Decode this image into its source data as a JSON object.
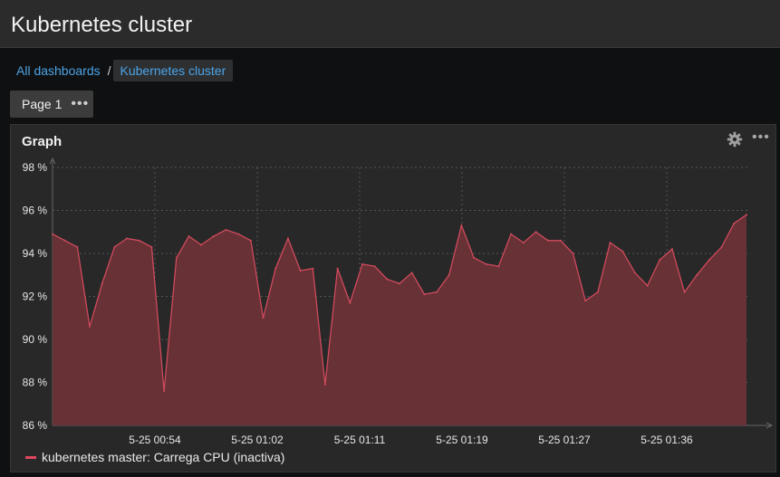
{
  "page": {
    "title": "Kubernetes cluster"
  },
  "breadcrumb": {
    "root": "All dashboards",
    "separator": "/",
    "current": "Kubernetes cluster"
  },
  "page_button": {
    "label": "Page 1",
    "menu": "•••"
  },
  "panel": {
    "title": "Graph",
    "menu": "•••"
  },
  "colors": {
    "line": "#d04a5c",
    "fill": "#6a3137",
    "link": "#4da3e6"
  },
  "chart_data": {
    "type": "area",
    "y_tick_labels": [
      "98 %",
      "96 %",
      "94 %",
      "92 %",
      "90 %",
      "88 %",
      "86 %"
    ],
    "ylim": [
      86,
      98
    ],
    "x_tick_labels": [
      "5-25 00:54",
      "5-25 01:02",
      "5-25 01:11",
      "5-25 01:19",
      "5-25 01:27",
      "5-25 01:36"
    ],
    "grid": true,
    "legend_position": "bottom-left",
    "series": [
      {
        "name": "kubernetes master: Carrega CPU (inactiva)",
        "values": [
          94.9,
          94.6,
          94.3,
          90.6,
          92.6,
          94.3,
          94.7,
          94.6,
          94.3,
          87.6,
          93.8,
          94.8,
          94.4,
          94.8,
          95.1,
          94.9,
          94.6,
          91.0,
          93.3,
          94.7,
          93.2,
          93.3,
          87.9,
          93.3,
          91.7,
          93.5,
          93.4,
          92.8,
          92.6,
          93.1,
          92.1,
          92.2,
          93.0,
          95.3,
          93.8,
          93.5,
          93.4,
          94.9,
          94.5,
          95.0,
          94.6,
          94.6,
          94.0,
          91.8,
          92.2,
          94.5,
          94.1,
          93.1,
          92.5,
          93.7,
          94.2,
          92.2,
          93.0,
          93.7,
          94.3,
          95.4,
          95.8
        ]
      }
    ]
  }
}
